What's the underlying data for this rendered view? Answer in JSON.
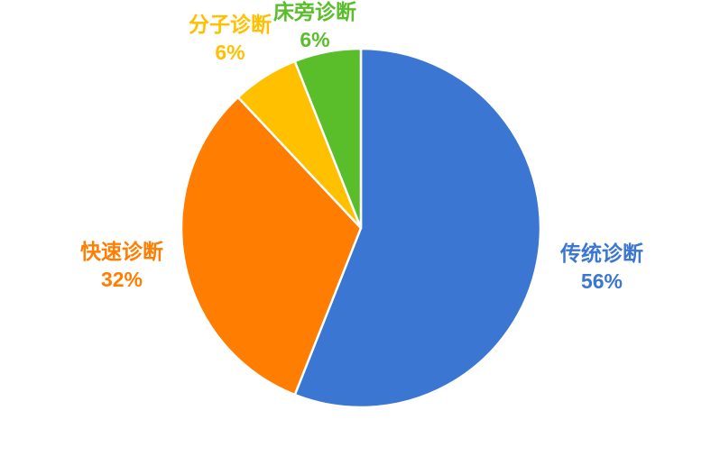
{
  "chart_data": {
    "type": "pie",
    "title": "",
    "legend": "none",
    "labels_position": "outside",
    "background": "#ffffff",
    "slice_border_color": "#ffffff",
    "start_angle_deg": 0,
    "direction": "clockwise",
    "categories": [
      "传统诊断",
      "快速诊断",
      "分子诊断",
      "床旁诊断"
    ],
    "values": [
      56,
      32,
      6,
      6
    ],
    "slices": [
      {
        "label": "传统诊断",
        "value": 56,
        "pct_label": "56%",
        "color": "#3A76D2"
      },
      {
        "label": "快速诊断",
        "value": 32,
        "pct_label": "32%",
        "color": "#FF7D00"
      },
      {
        "label": "分子诊断",
        "value": 6,
        "pct_label": "6%",
        "color": "#FFC000"
      },
      {
        "label": "床旁诊断",
        "value": 6,
        "pct_label": "6%",
        "color": "#5ABE2B"
      }
    ]
  }
}
